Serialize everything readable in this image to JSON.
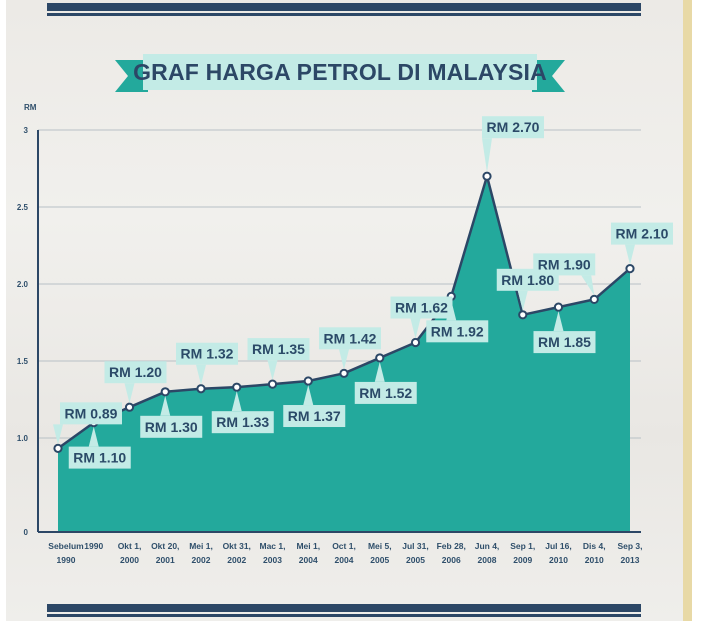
{
  "chart_data": {
    "type": "area",
    "title": "GRAF HARGA PETROL DI MALAYSIA",
    "ylabel": "RM",
    "ylim": [
      0,
      3
    ],
    "yticks": [
      "0",
      "1.0",
      "1.5",
      "2.0",
      "2.5",
      "3"
    ],
    "grid": true,
    "categories": [
      "Sebelum 1990",
      "1990",
      "Okt 1, 2000",
      "Okt 20, 2001",
      "Mei 1, 2002",
      "Okt 31, 2002",
      "Mac 1, 2003",
      "Mei 1, 2004",
      "Oct 1, 2004",
      "Mei 5, 2005",
      "Jul 31, 2005",
      "Feb 28, 2006",
      "Jun 4, 2008",
      "Sep 1, 2009",
      "Jul 16, 2010",
      "Dis 4, 2010",
      "Sep 3, 2013"
    ],
    "category_lines": [
      [
        "Sebelum",
        "1990"
      ],
      [
        "1990",
        ""
      ],
      [
        "Okt 1,",
        "2000"
      ],
      [
        "Okt 20,",
        "2001"
      ],
      [
        "Mei 1,",
        "2002"
      ],
      [
        "Okt 31,",
        "2002"
      ],
      [
        "Mac 1,",
        "2003"
      ],
      [
        "Mei 1,",
        "2004"
      ],
      [
        "Oct 1,",
        "2004"
      ],
      [
        "Mei 5,",
        "2005"
      ],
      [
        "Jul 31,",
        "2005"
      ],
      [
        "Feb 28,",
        "2006"
      ],
      [
        "Jun 4,",
        "2008"
      ],
      [
        "Sep 1,",
        "2009"
      ],
      [
        "Jul 16,",
        "2010"
      ],
      [
        "Dis 4,",
        "2010"
      ],
      [
        "Sep 3,",
        "2013"
      ]
    ],
    "values": [
      0.89,
      1.1,
      1.2,
      1.3,
      1.32,
      1.33,
      1.35,
      1.37,
      1.42,
      1.52,
      1.62,
      1.92,
      2.7,
      1.8,
      1.85,
      1.9,
      2.1
    ],
    "data_labels": [
      "RM 0.89",
      "RM 1.10",
      "RM 1.20",
      "RM 1.30",
      "RM 1.32",
      "RM 1.33",
      "RM 1.35",
      "RM 1.37",
      "RM 1.42",
      "RM 1.52",
      "RM 1.62",
      "RM 1.92",
      "RM 2.70",
      "RM 1.80",
      "RM 1.85",
      "RM 1.90",
      "RM 2.10"
    ],
    "label_side": [
      "above",
      "below",
      "above",
      "below",
      "above",
      "below",
      "above",
      "below",
      "above",
      "below",
      "above",
      "below",
      "above",
      "above",
      "below",
      "above",
      "above"
    ]
  },
  "colors": {
    "area_fill": "#23a99c",
    "line": "#2c4766",
    "point": "#ffffff",
    "label_bg": "#c3ebe6",
    "banner_bg": "#c3ebe6",
    "title": "#2c4766",
    "frame_stripe": "#2c4766",
    "grid": "#b8c0c6"
  }
}
